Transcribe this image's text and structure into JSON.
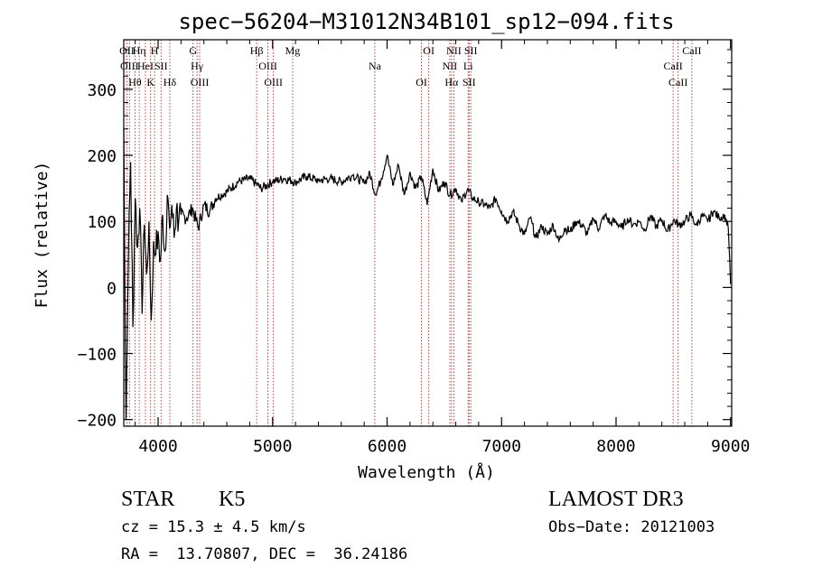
{
  "chart_data": {
    "type": "line",
    "title": "spec−56204−M31012N34B101_sp12−094.fits",
    "xlabel": "Wavelength (Å)",
    "ylabel": "Flux (relative)",
    "xlim": [
      3700,
      9010
    ],
    "ylim": [
      -210,
      375
    ],
    "x_ticks": [
      4000,
      5000,
      6000,
      7000,
      8000,
      9000
    ],
    "x_tick_labels": [
      "4000",
      "5000",
      "6000",
      "7000",
      "8000",
      "9000"
    ],
    "y_ticks": [
      -200,
      -100,
      0,
      100,
      200,
      300
    ],
    "y_tick_labels": [
      "−200",
      "−100",
      "0",
      "100",
      "200",
      "300"
    ],
    "series": [
      {
        "name": "flux",
        "x": [
          3700,
          3720,
          3740,
          3760,
          3780,
          3800,
          3820,
          3840,
          3860,
          3880,
          3900,
          3920,
          3940,
          3960,
          3980,
          4000,
          4020,
          4040,
          4060,
          4080,
          4100,
          4120,
          4140,
          4160,
          4180,
          4200,
          4250,
          4300,
          4350,
          4400,
          4450,
          4500,
          4600,
          4700,
          4800,
          4900,
          5000,
          5100,
          5200,
          5300,
          5400,
          5500,
          5600,
          5700,
          5800,
          5850,
          5900,
          5950,
          6000,
          6050,
          6100,
          6150,
          6200,
          6250,
          6300,
          6350,
          6400,
          6450,
          6500,
          6550,
          6600,
          6650,
          6700,
          6750,
          6800,
          6850,
          6900,
          6950,
          7000,
          7050,
          7100,
          7150,
          7200,
          7250,
          7300,
          7350,
          7400,
          7450,
          7500,
          7550,
          7600,
          7650,
          7700,
          7750,
          7800,
          7850,
          7900,
          7950,
          8000,
          8050,
          8100,
          8150,
          8200,
          8250,
          8300,
          8350,
          8400,
          8450,
          8500,
          8550,
          8600,
          8650,
          8700,
          8750,
          8800,
          8850,
          8900,
          8950,
          8980,
          9000
        ],
        "y": [
          240,
          -200,
          40,
          190,
          -60,
          135,
          60,
          120,
          -40,
          95,
          20,
          100,
          -50,
          70,
          50,
          85,
          40,
          110,
          55,
          140,
          90,
          125,
          75,
          120,
          100,
          110,
          105,
          120,
          90,
          125,
          115,
          135,
          145,
          160,
          165,
          150,
          160,
          165,
          160,
          168,
          162,
          165,
          160,
          170,
          158,
          172,
          140,
          165,
          200,
          155,
          185,
          140,
          175,
          150,
          168,
          125,
          180,
          145,
          160,
          140,
          150,
          130,
          148,
          135,
          130,
          125,
          120,
          135,
          115,
          100,
          115,
          95,
          80,
          105,
          75,
          92,
          80,
          95,
          70,
          90,
          85,
          100,
          95,
          80,
          105,
          88,
          110,
          98,
          100,
          90,
          105,
          95,
          100,
          88,
          108,
          92,
          103,
          85,
          102,
          95,
          100,
          110,
          95,
          108,
          100,
          115,
          105,
          110,
          90,
          5
        ]
      }
    ],
    "lines": [
      {
        "wave": 3727,
        "label": "OII"
      },
      {
        "wave": 3750,
        "label": "OIII"
      },
      {
        "wave": 3798,
        "label": "Hθ"
      },
      {
        "wave": 3835,
        "label": "Hη"
      },
      {
        "wave": 3889,
        "label": "HeI"
      },
      {
        "wave": 3934,
        "label": "K"
      },
      {
        "wave": 3969,
        "label": "H"
      },
      {
        "wave": 4026,
        "label": "SII"
      },
      {
        "wave": 4102,
        "label": "Hδ"
      },
      {
        "wave": 4305,
        "label": "G"
      },
      {
        "wave": 4340,
        "label": "Hγ"
      },
      {
        "wave": 4363,
        "label": "OIII"
      },
      {
        "wave": 4861,
        "label": "Hβ"
      },
      {
        "wave": 4959,
        "label": "OIII"
      },
      {
        "wave": 5007,
        "label": "OIII"
      },
      {
        "wave": 5175,
        "label": "Mg"
      },
      {
        "wave": 5893,
        "label": "Na"
      },
      {
        "wave": 6300,
        "label": "OI"
      },
      {
        "wave": 6364,
        "label": "OI"
      },
      {
        "wave": 6548,
        "label": "NII"
      },
      {
        "wave": 6563,
        "label": "Hα"
      },
      {
        "wave": 6583,
        "label": "NII"
      },
      {
        "wave": 6708,
        "label": "Li"
      },
      {
        "wave": 6716,
        "label": "SII"
      },
      {
        "wave": 6731,
        "label": "SII"
      },
      {
        "wave": 8498,
        "label": "CaII"
      },
      {
        "wave": 8542,
        "label": "CaII"
      },
      {
        "wave": 8662,
        "label": "CaII"
      }
    ],
    "grid": false,
    "legend": "none"
  },
  "info": {
    "class": "STAR",
    "subclass": "K5",
    "survey": "LAMOST DR3",
    "redshift": "cz = 15.3 ± 4.5 km/s",
    "obs_date": "Obs−Date: 20121003",
    "coords": "RA =  13.70807, DEC =  36.24186"
  },
  "colors": {
    "line_marker": "#b03030",
    "spectrum": "#000000",
    "axis": "#000000"
  }
}
